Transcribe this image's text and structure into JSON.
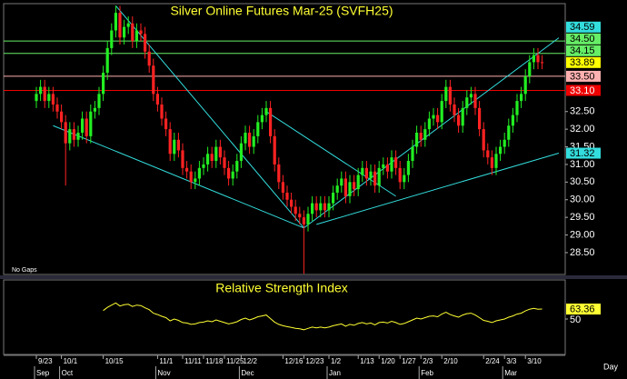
{
  "chart_data": {
    "type": "candlestick",
    "title": "Silver Online Futures  Mar-25  (SVFH25)",
    "note": "No Gaps",
    "x_unit": "Day",
    "up_color": "#22ee22",
    "down_color": "#ff2222",
    "ylim": [
      27.88,
      35.56
    ],
    "yticks": [
      {
        "value": 28.5,
        "label": "28.50"
      },
      {
        "value": 29,
        "label": "29.00"
      },
      {
        "value": 29.5,
        "label": "29.50"
      },
      {
        "value": 30,
        "label": "30.00"
      },
      {
        "value": 30.5,
        "label": "30.50"
      },
      {
        "value": 31,
        "label": "31.00"
      },
      {
        "value": 31.5,
        "label": "31.50"
      },
      {
        "value": 32,
        "label": "32.00"
      },
      {
        "value": 32.5,
        "label": "32.50"
      }
    ],
    "last_price_color": "#ffff00",
    "levels": [
      {
        "value": 34.5,
        "label": "34.50",
        "color": "#66ee66",
        "text_color": "#000000"
      },
      {
        "value": 34.15,
        "label": "34.15",
        "color": "#66ee66",
        "text_color": "#000000"
      },
      {
        "value": 33.5,
        "label": "33.50",
        "color": "#ffb0b0",
        "text_color": "#000000"
      },
      {
        "value": 33.1,
        "label": "33.10",
        "color": "#ee0000",
        "text_color": "#ffffff"
      }
    ],
    "trendline_color": "#33dddd",
    "trendlines": [
      {
        "start": [
          19,
          35.5
        ],
        "end": [
          64,
          29.2
        ]
      },
      {
        "start": [
          4,
          32.1
        ],
        "end": [
          64,
          29.2
        ]
      },
      {
        "start": [
          64,
          29.2
        ],
        "end": [
          125,
          34.59
        ],
        "end_label": "34.59"
      },
      {
        "start": [
          67,
          29.3
        ],
        "end": [
          125,
          31.32
        ],
        "end_label": "31.32"
      },
      {
        "start": [
          55,
          32.5
        ],
        "end": [
          86,
          30.1
        ]
      }
    ],
    "categories": [
      "9/23",
      null,
      null,
      null,
      null,
      null,
      "10/1",
      null,
      null,
      null,
      null,
      null,
      null,
      null,
      null,
      null,
      "10/15",
      null,
      null,
      null,
      null,
      null,
      null,
      null,
      null,
      null,
      null,
      null,
      null,
      "11/1",
      null,
      null,
      null,
      null,
      null,
      "11/11",
      null,
      null,
      null,
      null,
      "11/18",
      null,
      null,
      null,
      null,
      "11/25",
      null,
      null,
      null,
      "12/2",
      null,
      null,
      null,
      null,
      null,
      null,
      null,
      null,
      null,
      "12/16",
      null,
      null,
      null,
      null,
      "12/23",
      null,
      null,
      null,
      null,
      null,
      "1/2",
      null,
      null,
      null,
      null,
      null,
      null,
      "1/13",
      null,
      null,
      null,
      null,
      "1/20",
      null,
      null,
      null,
      null,
      "1/27",
      null,
      null,
      null,
      null,
      "2/3",
      null,
      null,
      null,
      null,
      "2/10",
      null,
      null,
      null,
      null,
      null,
      null,
      null,
      null,
      null,
      "2/24",
      null,
      null,
      null,
      null,
      "3/3",
      null,
      null,
      null,
      null,
      "3/10",
      null,
      null,
      null,
      null
    ],
    "months": [
      "Sep",
      null,
      null,
      null,
      null,
      null,
      "Oct",
      null,
      null,
      null,
      null,
      null,
      null,
      null,
      null,
      null,
      null,
      null,
      null,
      null,
      null,
      null,
      null,
      null,
      null,
      null,
      null,
      null,
      null,
      "Nov",
      null,
      null,
      null,
      null,
      null,
      null,
      null,
      null,
      null,
      null,
      null,
      null,
      null,
      null,
      null,
      null,
      null,
      null,
      null,
      "Dec",
      null,
      null,
      null,
      null,
      null,
      null,
      null,
      null,
      null,
      null,
      null,
      null,
      null,
      null,
      null,
      null,
      null,
      null,
      null,
      null,
      "Jan",
      null,
      null,
      null,
      null,
      null,
      null,
      null,
      null,
      null,
      null,
      null,
      null,
      null,
      null,
      null,
      null,
      null,
      null,
      null,
      null,
      null,
      "Feb",
      null,
      null,
      null,
      null,
      null,
      null,
      null,
      null,
      null,
      null,
      null,
      null,
      null,
      null,
      null,
      null,
      null,
      null,
      null,
      "Mar",
      null,
      null,
      null,
      null,
      null,
      null,
      null,
      null,
      null
    ],
    "ohlc": [
      [
        32.8,
        33.2,
        32.6,
        33.0
      ],
      [
        33.0,
        33.4,
        32.8,
        33.2
      ],
      [
        33.2,
        33.4,
        32.6,
        32.8
      ],
      [
        32.8,
        33.2,
        32.6,
        33.0
      ],
      [
        33.0,
        33.2,
        32.5,
        32.7
      ],
      [
        32.7,
        32.9,
        32.3,
        32.5
      ],
      [
        32.5,
        32.7,
        32.0,
        32.2
      ],
      [
        32.2,
        32.4,
        30.4,
        31.6
      ],
      [
        31.6,
        32.2,
        31.4,
        32.0
      ],
      [
        32.0,
        32.2,
        31.5,
        31.7
      ],
      [
        31.7,
        32.1,
        31.5,
        31.9
      ],
      [
        31.9,
        32.5,
        31.7,
        32.3
      ],
      [
        32.3,
        32.5,
        31.6,
        31.8
      ],
      [
        31.8,
        32.7,
        31.6,
        32.5
      ],
      [
        32.5,
        32.8,
        32.3,
        32.6
      ],
      [
        32.6,
        33.2,
        32.4,
        33.0
      ],
      [
        33.0,
        33.8,
        32.8,
        33.6
      ],
      [
        33.6,
        34.5,
        33.4,
        34.3
      ],
      [
        34.3,
        35.0,
        34.1,
        34.8
      ],
      [
        34.8,
        35.5,
        34.6,
        35.3
      ],
      [
        35.3,
        35.5,
        34.4,
        34.6
      ],
      [
        34.6,
        35.1,
        34.4,
        34.9
      ],
      [
        34.9,
        35.2,
        34.7,
        35.0
      ],
      [
        35.0,
        35.2,
        34.3,
        34.5
      ],
      [
        34.5,
        35.0,
        34.3,
        34.8
      ],
      [
        34.8,
        35.0,
        34.5,
        34.7
      ],
      [
        34.7,
        34.9,
        34.0,
        34.2
      ],
      [
        34.2,
        34.4,
        33.6,
        33.8
      ],
      [
        33.8,
        34.0,
        32.8,
        33.0
      ],
      [
        33.0,
        33.2,
        32.5,
        32.7
      ],
      [
        32.7,
        32.9,
        32.1,
        32.3
      ],
      [
        32.3,
        32.5,
        31.8,
        32.0
      ],
      [
        32.0,
        32.2,
        31.1,
        31.3
      ],
      [
        31.3,
        31.9,
        31.1,
        31.7
      ],
      [
        31.7,
        31.9,
        31.2,
        31.4
      ],
      [
        31.4,
        31.6,
        30.7,
        30.9
      ],
      [
        30.9,
        31.1,
        30.6,
        30.8
      ],
      [
        30.8,
        31.0,
        30.3,
        30.5
      ],
      [
        30.5,
        30.8,
        30.3,
        30.6
      ],
      [
        30.6,
        31.1,
        30.4,
        30.9
      ],
      [
        30.9,
        31.2,
        30.7,
        31.0
      ],
      [
        31.0,
        31.5,
        30.8,
        31.3
      ],
      [
        31.3,
        31.5,
        30.9,
        31.1
      ],
      [
        31.1,
        31.7,
        30.9,
        31.5
      ],
      [
        31.5,
        31.7,
        31.0,
        31.2
      ],
      [
        31.2,
        31.4,
        30.7,
        30.9
      ],
      [
        30.9,
        31.1,
        30.4,
        30.6
      ],
      [
        30.6,
        31.0,
        30.4,
        30.8
      ],
      [
        30.8,
        31.3,
        30.6,
        31.1
      ],
      [
        31.1,
        31.8,
        30.9,
        31.6
      ],
      [
        31.6,
        32.1,
        31.4,
        31.9
      ],
      [
        31.9,
        32.1,
        31.3,
        31.5
      ],
      [
        31.5,
        32.0,
        31.3,
        31.8
      ],
      [
        31.8,
        32.4,
        31.6,
        32.2
      ],
      [
        32.2,
        32.6,
        32.0,
        32.4
      ],
      [
        32.4,
        32.8,
        32.2,
        32.6
      ],
      [
        32.6,
        32.8,
        31.6,
        31.8
      ],
      [
        31.8,
        32.0,
        30.8,
        31.0
      ],
      [
        31.0,
        31.2,
        30.3,
        30.5
      ],
      [
        30.5,
        30.7,
        30.0,
        30.2
      ],
      [
        30.2,
        30.4,
        29.8,
        30.0
      ],
      [
        30.0,
        30.2,
        29.6,
        29.8
      ],
      [
        29.8,
        30.0,
        29.4,
        29.6
      ],
      [
        29.6,
        29.8,
        29.3,
        29.5
      ],
      [
        29.5,
        29.7,
        27.9,
        29.3
      ],
      [
        29.3,
        29.8,
        29.1,
        29.6
      ],
      [
        29.6,
        30.1,
        29.4,
        29.9
      ],
      [
        29.9,
        30.1,
        29.5,
        29.7
      ],
      [
        29.7,
        30.1,
        29.5,
        29.9
      ],
      [
        29.9,
        30.1,
        29.5,
        29.7
      ],
      [
        29.7,
        30.1,
        29.5,
        29.9
      ],
      [
        29.9,
        30.4,
        29.7,
        30.2
      ],
      [
        30.2,
        30.6,
        30.0,
        30.4
      ],
      [
        30.4,
        30.8,
        30.2,
        30.6
      ],
      [
        30.6,
        30.8,
        29.9,
        30.1
      ],
      [
        30.1,
        30.7,
        29.9,
        30.5
      ],
      [
        30.5,
        30.7,
        30.1,
        30.3
      ],
      [
        30.3,
        30.9,
        30.1,
        30.7
      ],
      [
        30.7,
        31.1,
        30.5,
        30.9
      ],
      [
        30.9,
        31.1,
        30.4,
        30.6
      ],
      [
        30.6,
        31.0,
        30.4,
        30.8
      ],
      [
        30.8,
        31.0,
        30.2,
        30.4
      ],
      [
        30.4,
        31.1,
        30.2,
        30.9
      ],
      [
        30.9,
        31.2,
        30.7,
        31.0
      ],
      [
        31.0,
        31.2,
        30.6,
        30.8
      ],
      [
        30.8,
        31.4,
        30.6,
        31.2
      ],
      [
        31.2,
        31.4,
        30.7,
        30.9
      ],
      [
        30.9,
        31.1,
        30.3,
        30.5
      ],
      [
        30.5,
        30.9,
        30.3,
        30.7
      ],
      [
        30.7,
        31.3,
        30.5,
        31.1
      ],
      [
        31.1,
        31.7,
        30.9,
        31.5
      ],
      [
        31.5,
        32.1,
        31.3,
        31.9
      ],
      [
        31.9,
        32.1,
        31.5,
        31.7
      ],
      [
        31.7,
        32.2,
        31.5,
        32.0
      ],
      [
        32.0,
        32.5,
        31.8,
        32.3
      ],
      [
        32.3,
        32.6,
        32.1,
        32.4
      ],
      [
        32.4,
        32.6,
        32.0,
        32.2
      ],
      [
        32.2,
        33.0,
        32.0,
        32.8
      ],
      [
        32.8,
        33.4,
        32.6,
        33.2
      ],
      [
        33.2,
        33.4,
        32.5,
        32.7
      ],
      [
        32.7,
        32.9,
        32.2,
        32.4
      ],
      [
        32.4,
        32.6,
        31.9,
        32.1
      ],
      [
        32.1,
        32.8,
        31.9,
        32.6
      ],
      [
        32.6,
        33.1,
        32.4,
        32.9
      ],
      [
        32.9,
        33.2,
        32.7,
        33.0
      ],
      [
        33.0,
        33.2,
        32.4,
        32.6
      ],
      [
        32.6,
        32.8,
        31.8,
        32.0
      ],
      [
        32.0,
        32.2,
        31.2,
        31.4
      ],
      [
        31.4,
        31.6,
        31.0,
        31.2
      ],
      [
        31.2,
        31.4,
        30.7,
        30.9
      ],
      [
        30.9,
        31.5,
        30.7,
        31.3
      ],
      [
        31.3,
        31.7,
        31.1,
        31.5
      ],
      [
        31.5,
        31.9,
        31.3,
        31.7
      ],
      [
        31.7,
        32.3,
        31.5,
        32.1
      ],
      [
        32.1,
        32.6,
        31.9,
        32.4
      ],
      [
        32.4,
        33.0,
        32.2,
        32.8
      ],
      [
        32.8,
        33.2,
        32.6,
        33.0
      ],
      [
        33.0,
        33.7,
        32.8,
        33.5
      ],
      [
        33.5,
        34.1,
        33.3,
        33.9
      ],
      [
        33.9,
        34.3,
        33.7,
        34.1
      ],
      [
        34.1,
        34.3,
        33.7,
        33.9
      ],
      [
        33.9,
        34.1,
        33.7,
        33.89
      ]
    ],
    "indicator": {
      "title": "Relative Strength Index",
      "color": "#ffff33",
      "ylim": [
        0,
        100
      ],
      "yticks": [
        50
      ],
      "values": [
        null,
        null,
        null,
        null,
        null,
        null,
        null,
        null,
        null,
        null,
        null,
        null,
        null,
        null,
        null,
        null,
        61.4,
        65.6,
        68.6,
        71.6,
        67.4,
        69.2,
        69.8,
        66.8,
        68.6,
        68.0,
        65.0,
        62.6,
        57.8,
        56.0,
        53.6,
        51.8,
        47.6,
        50.0,
        48.2,
        45.2,
        44.6,
        42.8,
        43.4,
        45.2,
        45.8,
        47.6,
        46.4,
        48.8,
        47.0,
        45.2,
        43.4,
        44.6,
        46.4,
        49.4,
        51.2,
        48.8,
        50.6,
        53.0,
        54.2,
        55.4,
        50.6,
        45.8,
        42.8,
        41.0,
        39.8,
        38.6,
        37.4,
        36.8,
        35.6,
        37.4,
        39.2,
        38.0,
        39.2,
        38.0,
        39.2,
        41.0,
        42.2,
        43.4,
        40.4,
        42.8,
        41.6,
        44.0,
        45.2,
        43.4,
        44.6,
        42.2,
        45.2,
        45.8,
        44.6,
        47.0,
        45.2,
        42.8,
        44.0,
        46.4,
        48.8,
        51.2,
        50.0,
        51.8,
        53.6,
        54.2,
        53.0,
        56.6,
        59.0,
        56.0,
        54.2,
        52.4,
        55.4,
        57.2,
        57.8,
        55.4,
        51.8,
        48.2,
        47.0,
        45.2,
        47.6,
        48.8,
        50.0,
        52.4,
        54.2,
        56.6,
        57.8,
        60.8,
        63.2,
        64.4,
        63.2,
        63.36
      ]
    }
  }
}
